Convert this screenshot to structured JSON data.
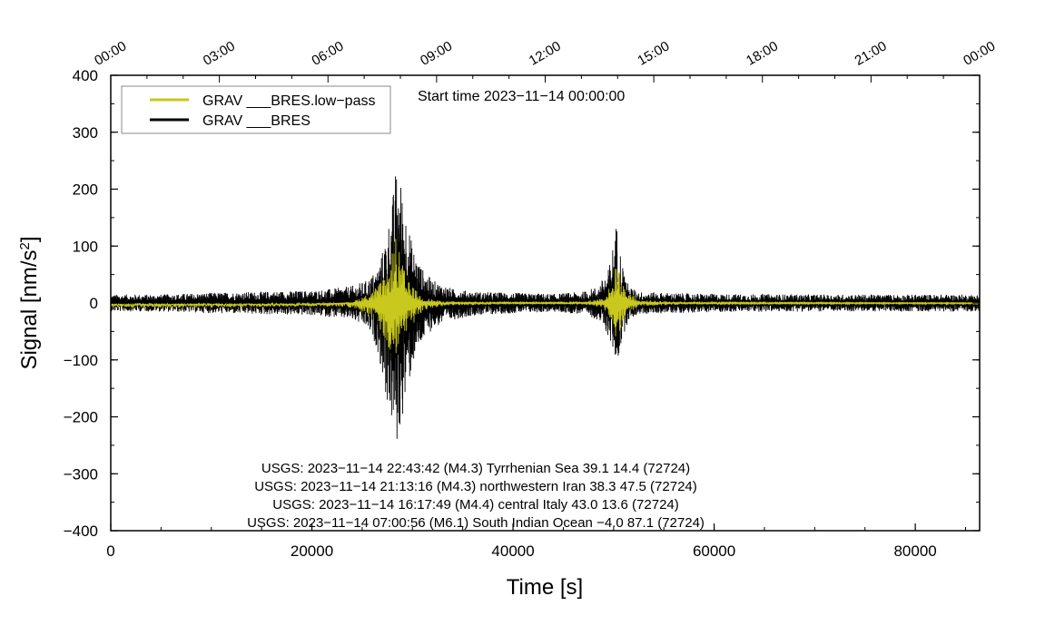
{
  "chart_data": {
    "type": "line",
    "xlabel": "Time [s]",
    "ylabel_main": "Signal [nm/s",
    "ylabel_sup": "2",
    "ylabel_close": "]",
    "xlim": [
      0,
      86400
    ],
    "ylim": [
      -400,
      400
    ],
    "x_ticks": [
      0,
      20000,
      40000,
      60000,
      80000
    ],
    "x_tick_labels": [
      "0",
      "20000",
      "40000",
      "60000",
      "80000"
    ],
    "x_minor_step": 5000,
    "y_ticks": [
      -400,
      -300,
      -200,
      -100,
      0,
      100,
      200,
      300,
      400
    ],
    "y_tick_labels": [
      "−400",
      "−300",
      "−200",
      "−100",
      "0",
      "100",
      "200",
      "300",
      "400"
    ],
    "y_minor_step": 50,
    "top_ticks_seconds": [
      0,
      10800,
      21600,
      32400,
      43200,
      54000,
      64800,
      75600,
      86400
    ],
    "top_tick_labels": [
      "00:00",
      "03:00",
      "06:00",
      "09:00",
      "12:00",
      "15:00",
      "18:00",
      "21:00",
      "00:00"
    ],
    "annotation": "Start time 2023−11−14 00:00:00",
    "legend": {
      "placement": "top-left",
      "entries": [
        {
          "label": "GRAV ___BRES.low−pass",
          "color": "#c8c81e"
        },
        {
          "label": "GRAV ___BRES",
          "color": "#000000"
        }
      ]
    },
    "series": [
      {
        "name": "GRAV ___BRES",
        "color": "#000000",
        "envelope_x": [
          0,
          5000,
          10000,
          15000,
          20000,
          22000,
          24000,
          25500,
          26500,
          27000,
          27500,
          28000,
          28300,
          28600,
          29000,
          29500,
          30000,
          31000,
          32000,
          34000,
          36000,
          40000,
          44000,
          47000,
          48500,
          49500,
          50000,
          50300,
          50600,
          51000,
          51500,
          52500,
          55000,
          60000,
          70000,
          80000,
          86400
        ],
        "upper": [
          15,
          15,
          18,
          20,
          22,
          25,
          30,
          40,
          60,
          90,
          130,
          180,
          230,
          240,
          200,
          150,
          100,
          60,
          40,
          25,
          20,
          18,
          16,
          20,
          30,
          60,
          110,
          145,
          100,
          60,
          30,
          20,
          18,
          16,
          15,
          15,
          15
        ],
        "lower": [
          -15,
          -15,
          -18,
          -20,
          -22,
          -25,
          -30,
          -45,
          -80,
          -130,
          -180,
          -220,
          -260,
          -250,
          -200,
          -160,
          -110,
          -70,
          -45,
          -30,
          -22,
          -18,
          -16,
          -20,
          -30,
          -60,
          -90,
          -110,
          -90,
          -55,
          -30,
          -20,
          -18,
          -16,
          -15,
          -15,
          -15
        ]
      },
      {
        "name": "GRAV ___BRES.low−pass",
        "color": "#c8c81e",
        "envelope_x": [
          0,
          10000,
          20000,
          24000,
          26000,
          27500,
          28300,
          28700,
          29500,
          31000,
          33000,
          40000,
          47000,
          49000,
          50000,
          50300,
          51000,
          52500,
          60000,
          86400
        ],
        "upper": [
          -5,
          -5,
          -3,
          2,
          20,
          50,
          120,
          90,
          40,
          10,
          3,
          2,
          2,
          10,
          40,
          80,
          30,
          5,
          1,
          0
        ],
        "lower": [
          -8,
          -8,
          -6,
          -8,
          -30,
          -80,
          -110,
          -90,
          -50,
          -15,
          -5,
          -2,
          -2,
          -10,
          -40,
          -70,
          -30,
          -5,
          -2,
          -2
        ]
      }
    ],
    "event_lines": [
      "USGS: 2023−11−14 22:43:42 (M4.3) Tyrrhenian Sea 39.1 14.4 (72724)",
      "USGS: 2023−11−14 21:13:16 (M4.3) northwestern Iran 38.3 47.5 (72724)",
      "USGS: 2023−11−14 16:17:49 (M4.4) central Italy 43.0 13.6 (72724)",
      "USGS: 2023−11−14 07:00:56 (M6.1) South Indian Ocean −4.0 87.1 (72724)"
    ]
  }
}
